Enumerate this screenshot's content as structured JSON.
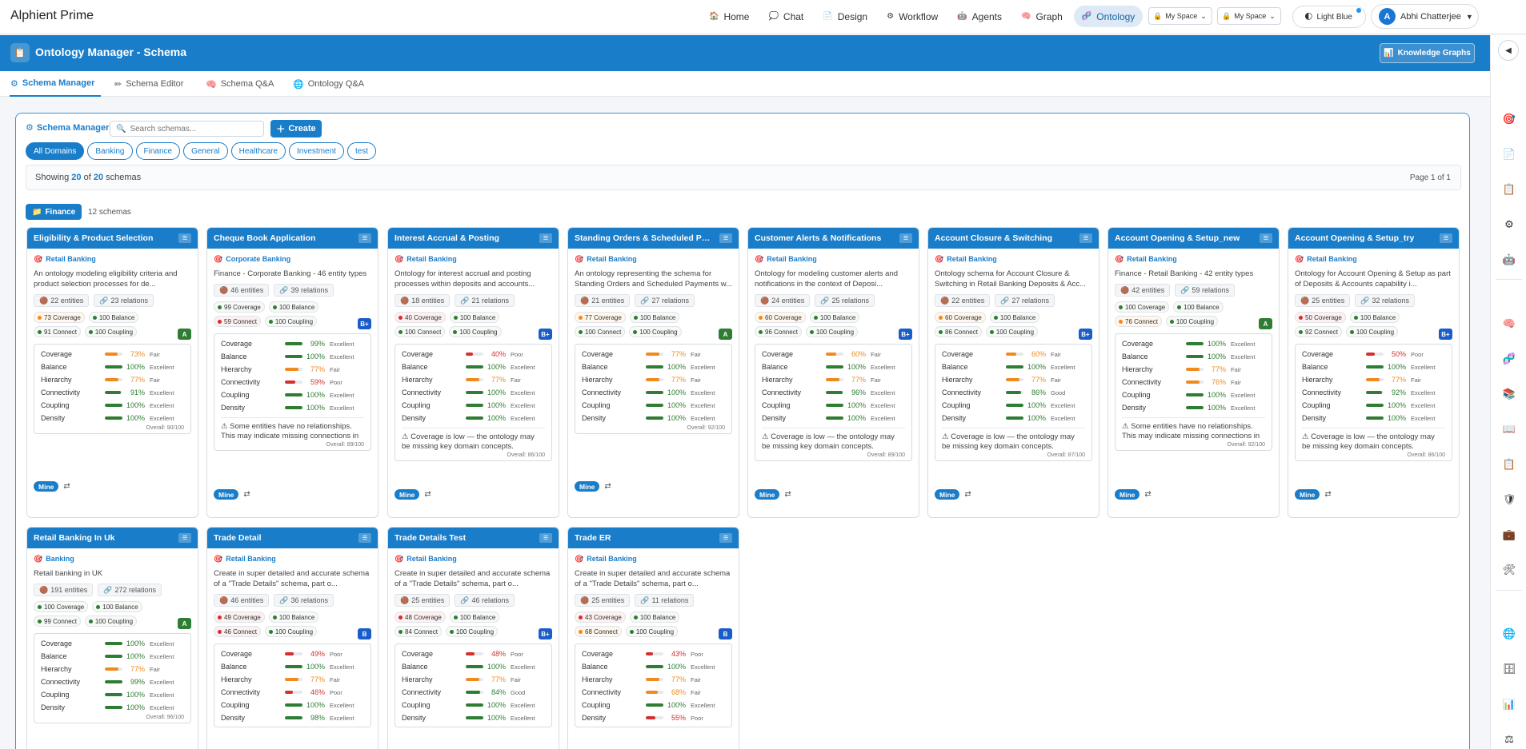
{
  "app": {
    "brand": "Alphient Prime"
  },
  "nav": [
    {
      "icon": "🏠",
      "label": "Home",
      "active": false
    },
    {
      "icon": "💭",
      "label": "Chat",
      "active": false
    },
    {
      "icon": "📄",
      "label": "Design",
      "active": false
    },
    {
      "icon": "⚙",
      "label": "Workflow",
      "active": false
    },
    {
      "icon": "🤖",
      "label": "Agents",
      "active": false
    },
    {
      "icon": "🧠",
      "label": "Graph",
      "active": false
    },
    {
      "icon": "🧬",
      "label": "Ontology",
      "active": true
    }
  ],
  "spaces": [
    {
      "icon": "🔒",
      "label": "My Space"
    },
    {
      "icon": "🔒",
      "label": "My Space"
    }
  ],
  "theme": {
    "icon": "🌓",
    "label": "Light Blue"
  },
  "user": {
    "initial": "A",
    "name": "Abhi Chatterjee",
    "caret": "▼"
  },
  "header": {
    "icon": "📋",
    "title": "Ontology Manager - Schema",
    "kg_icon": "📊",
    "kg_label": "Knowledge Graphs"
  },
  "rail": {
    "toggle": "◀"
  },
  "tabs": [
    {
      "icon": "⚙",
      "label": "Schema Manager",
      "active": true
    },
    {
      "icon": "✏",
      "label": "Schema Editor",
      "active": false
    },
    {
      "icon": "🧠",
      "label": "Schema Q&A",
      "active": false
    },
    {
      "icon": "🌐",
      "label": "Ontology Q&A",
      "active": false
    }
  ],
  "manager": {
    "icon": "⚙",
    "label": "Schema Manager",
    "search_icon": "🔍",
    "search_placeholder": "Search schemas...",
    "create_icon": "＋",
    "create_label": "Create",
    "filters": [
      "All Domains",
      "Banking",
      "Finance",
      "General",
      "Healthcare",
      "Investment",
      "test"
    ],
    "showing_prefix": "Showing",
    "showing_count": "20",
    "showing_of": "of",
    "showing_total": "20",
    "showing_suffix": "schemas",
    "page_info": "Page 1 of 1",
    "group_icon": "📁",
    "group_label": "Finance",
    "group_count": "12 schemas",
    "mine_label": "Mine"
  },
  "metric_names": [
    "Coverage",
    "Balance",
    "Hierarchy",
    "Connectivity",
    "Coupling",
    "Density"
  ],
  "cards": [
    {
      "title": "Eligibility & Product Selection",
      "domain": "Retail Banking",
      "desc": "An ontology modeling eligibility criteria and product selection processes for de...",
      "entities": "22 entities",
      "relations": "23 relations",
      "badges": [
        [
          "73 Coverage",
          "o"
        ],
        [
          "100 Balance",
          "g"
        ],
        [
          "91 Connect",
          "g"
        ],
        [
          "100 Coupling",
          "g"
        ]
      ],
      "grade": "A",
      "metrics": [
        [
          "73%",
          "Fair",
          "o"
        ],
        [
          "100%",
          "Excellent",
          "g"
        ],
        [
          "77%",
          "Fair",
          "o"
        ],
        [
          "91%",
          "Excellent",
          "g"
        ],
        [
          "100%",
          "Excellent",
          "g"
        ],
        [
          "100%",
          "Excellent",
          "g"
        ]
      ],
      "warning": "",
      "overall": "Overall: 90/100"
    },
    {
      "title": "Cheque Book Application",
      "domain": "Corporate Banking",
      "desc": "Finance - Corporate Banking - 46 entity types",
      "entities": "46 entities",
      "relations": "39 relations",
      "badges": [
        [
          "99 Coverage",
          "g"
        ],
        [
          "100 Balance",
          "g"
        ],
        [
          "59 Connect",
          "r"
        ],
        [
          "100 Coupling",
          "g"
        ]
      ],
      "grade": "B+",
      "metrics": [
        [
          "99%",
          "Excellent",
          "g"
        ],
        [
          "100%",
          "Excellent",
          "g"
        ],
        [
          "77%",
          "Fair",
          "o"
        ],
        [
          "59%",
          "Poor",
          "r"
        ],
        [
          "100%",
          "Excellent",
          "g"
        ],
        [
          "100%",
          "Excellent",
          "g"
        ]
      ],
      "warning": "⚠ Some entities have no relationships. This may indicate missing connections in the...",
      "overall": "Overall: 89/100"
    },
    {
      "title": "Interest Accrual & Posting",
      "domain": "Retail Banking",
      "desc": "Ontology for interest accrual and posting processes within deposits and accounts...",
      "entities": "18 entities",
      "relations": "21 relations",
      "badges": [
        [
          "40 Coverage",
          "r"
        ],
        [
          "100 Balance",
          "g"
        ],
        [
          "100 Connect",
          "g"
        ],
        [
          "100 Coupling",
          "g"
        ]
      ],
      "grade": "B+",
      "metrics": [
        [
          "40%",
          "Poor",
          "r"
        ],
        [
          "100%",
          "Excellent",
          "g"
        ],
        [
          "77%",
          "Fair",
          "o"
        ],
        [
          "100%",
          "Excellent",
          "g"
        ],
        [
          "100%",
          "Excellent",
          "g"
        ],
        [
          "100%",
          "Excellent",
          "g"
        ]
      ],
      "warning": "⚠ Coverage is low — the ontology may be missing key domain concepts. Consider...",
      "overall": "Overall: 86/100"
    },
    {
      "title": "Standing Orders & Scheduled Payments",
      "domain": "Retail Banking",
      "desc": "An ontology representing the schema for Standing Orders and Scheduled Payments w...",
      "entities": "21 entities",
      "relations": "27 relations",
      "badges": [
        [
          "77 Coverage",
          "o"
        ],
        [
          "100 Balance",
          "g"
        ],
        [
          "100 Connect",
          "g"
        ],
        [
          "100 Coupling",
          "g"
        ]
      ],
      "grade": "A",
      "metrics": [
        [
          "77%",
          "Fair",
          "o"
        ],
        [
          "100%",
          "Excellent",
          "g"
        ],
        [
          "77%",
          "Fair",
          "o"
        ],
        [
          "100%",
          "Excellent",
          "g"
        ],
        [
          "100%",
          "Excellent",
          "g"
        ],
        [
          "100%",
          "Excellent",
          "g"
        ]
      ],
      "warning": "",
      "overall": "Overall: 92/100"
    },
    {
      "title": "Customer Alerts & Notifications",
      "domain": "Retail Banking",
      "desc": "Ontology for modeling customer alerts and notifications in the context of Deposi...",
      "entities": "24 entities",
      "relations": "25 relations",
      "badges": [
        [
          "60 Coverage",
          "o"
        ],
        [
          "100 Balance",
          "g"
        ],
        [
          "96 Connect",
          "g"
        ],
        [
          "100 Coupling",
          "g"
        ]
      ],
      "grade": "B+",
      "metrics": [
        [
          "60%",
          "Fair",
          "o"
        ],
        [
          "100%",
          "Excellent",
          "g"
        ],
        [
          "77%",
          "Fair",
          "o"
        ],
        [
          "96%",
          "Excellent",
          "g"
        ],
        [
          "100%",
          "Excellent",
          "g"
        ],
        [
          "100%",
          "Excellent",
          "g"
        ]
      ],
      "warning": "⚠ Coverage is low — the ontology may be missing key domain concepts. Consider...",
      "overall": "Overall: 89/100"
    },
    {
      "title": "Account Closure & Switching",
      "domain": "Retail Banking",
      "desc": "Ontology schema for Account Closure & Switching in Retail Banking Deposits & Acc...",
      "entities": "22 entities",
      "relations": "27 relations",
      "badges": [
        [
          "60 Coverage",
          "o"
        ],
        [
          "100 Balance",
          "g"
        ],
        [
          "86 Connect",
          "g"
        ],
        [
          "100 Coupling",
          "g"
        ]
      ],
      "grade": "B+",
      "metrics": [
        [
          "60%",
          "Fair",
          "o"
        ],
        [
          "100%",
          "Excellent",
          "g"
        ],
        [
          "77%",
          "Fair",
          "o"
        ],
        [
          "86%",
          "Good",
          "g"
        ],
        [
          "100%",
          "Excellent",
          "g"
        ],
        [
          "100%",
          "Excellent",
          "g"
        ]
      ],
      "warning": "⚠ Coverage is low — the ontology may be missing key domain concepts. Consider...",
      "overall": "Overall: 87/100"
    },
    {
      "title": "Account Opening & Setup_new",
      "domain": "Retail Banking",
      "desc": "Finance - Retail Banking - 42 entity types",
      "entities": "42 entities",
      "relations": "59 relations",
      "badges": [
        [
          "100 Coverage",
          "g"
        ],
        [
          "100 Balance",
          "g"
        ],
        [
          "76 Connect",
          "o"
        ],
        [
          "100 Coupling",
          "g"
        ]
      ],
      "grade": "A",
      "metrics": [
        [
          "100%",
          "Excellent",
          "g"
        ],
        [
          "100%",
          "Excellent",
          "g"
        ],
        [
          "77%",
          "Fair",
          "o"
        ],
        [
          "76%",
          "Fair",
          "o"
        ],
        [
          "100%",
          "Excellent",
          "g"
        ],
        [
          "100%",
          "Excellent",
          "g"
        ]
      ],
      "warning": "⚠ Some entities have no relationships. This may indicate missing connections in the...",
      "overall": "Overall: 92/100"
    },
    {
      "title": "Account Opening & Setup_try",
      "domain": "Retail Banking",
      "desc": "Ontology for Account Opening & Setup as part of Deposits & Accounts capability i...",
      "entities": "25 entities",
      "relations": "32 relations",
      "badges": [
        [
          "50 Coverage",
          "r"
        ],
        [
          "100 Balance",
          "g"
        ],
        [
          "92 Connect",
          "g"
        ],
        [
          "100 Coupling",
          "g"
        ]
      ],
      "grade": "B+",
      "metrics": [
        [
          "50%",
          "Poor",
          "r"
        ],
        [
          "100%",
          "Excellent",
          "g"
        ],
        [
          "77%",
          "Fair",
          "o"
        ],
        [
          "92%",
          "Excellent",
          "g"
        ],
        [
          "100%",
          "Excellent",
          "g"
        ],
        [
          "100%",
          "Excellent",
          "g"
        ]
      ],
      "warning": "⚠ Coverage is low — the ontology may be missing key domain concepts. Consider...",
      "overall": "Overall: 86/100"
    },
    {
      "title": "Retail Banking In Uk",
      "domain": "Banking",
      "desc": "Retail banking in UK",
      "entities": "191 entities",
      "relations": "272 relations",
      "badges": [
        [
          "100 Coverage",
          "g"
        ],
        [
          "100 Balance",
          "g"
        ],
        [
          "99 Connect",
          "g"
        ],
        [
          "100 Coupling",
          "g"
        ]
      ],
      "grade": "A",
      "metrics": [
        [
          "100%",
          "Excellent",
          "g"
        ],
        [
          "100%",
          "Excellent",
          "g"
        ],
        [
          "77%",
          "Fair",
          "o"
        ],
        [
          "99%",
          "Excellent",
          "g"
        ],
        [
          "100%",
          "Excellent",
          "g"
        ],
        [
          "100%",
          "Excellent",
          "g"
        ]
      ],
      "warning": "",
      "overall": "Overall: 96/100"
    },
    {
      "title": "Trade Detail",
      "domain": "Retail Banking",
      "desc": "Create in super detailed and accurate schema of a \"Trade Details\" schema, part o...",
      "entities": "46 entities",
      "relations": "36 relations",
      "badges": [
        [
          "49 Coverage",
          "r"
        ],
        [
          "100 Balance",
          "g"
        ],
        [
          "46 Connect",
          "r"
        ],
        [
          "100 Coupling",
          "g"
        ]
      ],
      "grade": "B",
      "metrics": [
        [
          "49%",
          "Poor",
          "r"
        ],
        [
          "100%",
          "Excellent",
          "g"
        ],
        [
          "77%",
          "Fair",
          "o"
        ],
        [
          "46%",
          "Poor",
          "r"
        ],
        [
          "100%",
          "Excellent",
          "g"
        ],
        [
          "98%",
          "Excellent",
          "g"
        ]
      ],
      "warning": "",
      "overall": ""
    },
    {
      "title": "Trade Details Test",
      "domain": "Retail Banking",
      "desc": "Create in super detailed and accurate schema of a \"Trade Details\" schema, part o...",
      "entities": "25 entities",
      "relations": "46 relations",
      "badges": [
        [
          "48 Coverage",
          "r"
        ],
        [
          "100 Balance",
          "g"
        ],
        [
          "84 Connect",
          "g"
        ],
        [
          "100 Coupling",
          "g"
        ]
      ],
      "grade": "B+",
      "metrics": [
        [
          "48%",
          "Poor",
          "r"
        ],
        [
          "100%",
          "Excellent",
          "g"
        ],
        [
          "77%",
          "Fair",
          "o"
        ],
        [
          "84%",
          "Good",
          "g"
        ],
        [
          "100%",
          "Excellent",
          "g"
        ],
        [
          "100%",
          "Excellent",
          "g"
        ]
      ],
      "warning": "",
      "overall": ""
    },
    {
      "title": "Trade ER",
      "domain": "Retail Banking",
      "desc": "Create in super detailed and accurate schema of a \"Trade Details\" schema, part o...",
      "entities": "25 entities",
      "relations": "11 relations",
      "badges": [
        [
          "43 Coverage",
          "r"
        ],
        [
          "100 Balance",
          "g"
        ],
        [
          "68 Connect",
          "o"
        ],
        [
          "100 Coupling",
          "g"
        ]
      ],
      "grade": "B",
      "metrics": [
        [
          "43%",
          "Poor",
          "r"
        ],
        [
          "100%",
          "Excellent",
          "g"
        ],
        [
          "77%",
          "Fair",
          "o"
        ],
        [
          "68%",
          "Fair",
          "o"
        ],
        [
          "100%",
          "Excellent",
          "g"
        ],
        [
          "55%",
          "Poor",
          "r"
        ]
      ],
      "warning": "",
      "overall": ""
    }
  ]
}
